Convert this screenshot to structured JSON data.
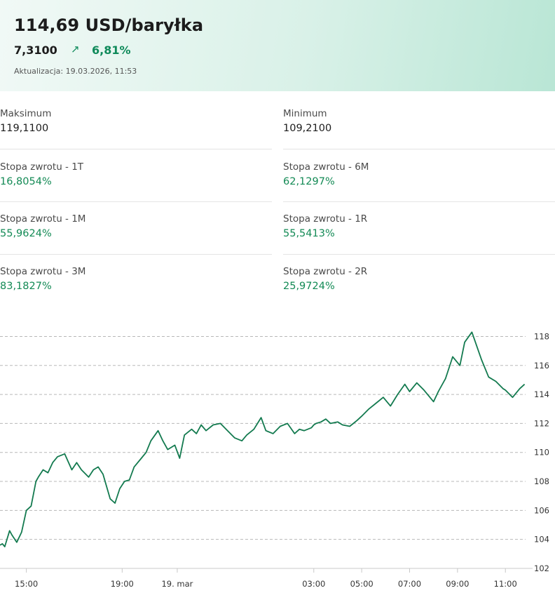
{
  "header": {
    "price": "114,69 USD/baryłka",
    "change_abs": "7,3100",
    "change_pct": "6,81%",
    "trend_icon": "arrow-up-right-icon",
    "updated": "Aktualizacja: 19.03.2026, 11:53"
  },
  "stats": {
    "max": {
      "label": "Maksimum",
      "value": "119,1100"
    },
    "min": {
      "label": "Minimum",
      "value": "109,2100"
    },
    "r1t": {
      "label": "Stopa zwrotu - 1T",
      "value": "16,8054%"
    },
    "r6m": {
      "label": "Stopa zwrotu - 6M",
      "value": "62,1297%"
    },
    "r1m": {
      "label": "Stopa zwrotu - 1M",
      "value": "55,9624%"
    },
    "r1r": {
      "label": "Stopa zwrotu - 1R",
      "value": "55,5413%"
    },
    "r3m": {
      "label": "Stopa zwrotu - 3M",
      "value": "83,1827%"
    },
    "r2r": {
      "label": "Stopa zwrotu - 2R",
      "value": "25,9724%"
    }
  },
  "colors": {
    "accent": "#0f8a5a",
    "line": "#137a4f",
    "grid": "#b8b8b8"
  },
  "chart_data": {
    "type": "line",
    "title": "",
    "xlabel": "",
    "ylabel": "",
    "ylim": [
      102,
      118.7
    ],
    "yticks": [
      102,
      104,
      106,
      108,
      110,
      112,
      114,
      116,
      118
    ],
    "ytick_labels": [
      "102",
      "104",
      "106",
      "108",
      "110",
      "112",
      "114",
      "116",
      "118"
    ],
    "xlim": [
      13.9,
      35.9
    ],
    "xticks": [
      15,
      19,
      21.3,
      27,
      29,
      31,
      33,
      35
    ],
    "xtick_labels": [
      "15:00",
      "19:00",
      "19. mar",
      "03:00",
      "05:00",
      "07:00",
      "09:00",
      "11:00"
    ],
    "grid": "horizontal dashed",
    "series": [
      {
        "x": [
          13.9,
          14.0,
          14.1,
          14.3,
          14.4,
          14.6,
          14.8,
          15.0,
          15.2,
          15.4,
          15.5,
          15.7,
          15.9,
          16.1,
          16.3,
          16.6,
          16.9,
          17.1,
          17.3,
          17.6,
          17.8,
          18.0,
          18.2,
          18.5,
          18.7,
          18.9,
          19.1,
          19.3,
          19.5,
          19.8,
          20.0,
          20.2,
          20.5,
          20.7,
          20.9,
          21.2,
          21.4,
          21.6,
          21.9,
          22.1,
          22.3,
          22.5,
          22.8,
          23.1,
          23.4,
          23.7,
          24.0,
          24.2,
          24.5,
          24.8,
          25.0,
          25.3,
          25.6,
          25.9,
          26.2,
          26.4,
          26.6,
          26.9,
          27.0,
          27.1,
          27.3,
          27.5,
          27.7,
          28.0,
          28.2,
          28.5,
          28.8,
          29.0,
          29.3,
          29.6,
          29.9,
          30.2,
          30.5,
          30.8,
          31.0,
          31.3,
          31.6,
          32.0,
          32.2,
          32.5,
          32.8,
          33.1,
          33.3,
          33.6,
          34.0,
          34.3,
          34.6,
          34.9,
          35.0,
          35.3,
          35.6,
          35.8
        ],
        "y": [
          103.6,
          103.7,
          103.5,
          104.6,
          104.3,
          103.8,
          104.5,
          106.0,
          106.3,
          108.0,
          108.3,
          108.8,
          108.6,
          109.3,
          109.7,
          109.9,
          108.8,
          109.3,
          108.8,
          108.3,
          108.8,
          109.0,
          108.5,
          106.8,
          106.5,
          107.5,
          108.0,
          108.1,
          109.0,
          109.6,
          110.0,
          110.8,
          111.5,
          110.8,
          110.2,
          110.5,
          109.6,
          111.2,
          111.6,
          111.3,
          111.9,
          111.5,
          111.9,
          112.0,
          111.5,
          111.0,
          110.8,
          111.2,
          111.6,
          112.4,
          111.5,
          111.3,
          111.8,
          112.0,
          111.3,
          111.6,
          111.5,
          111.7,
          111.9,
          112.0,
          112.1,
          112.3,
          112.0,
          112.1,
          111.9,
          111.8,
          112.2,
          112.5,
          113.0,
          113.4,
          113.8,
          113.2,
          114.0,
          114.7,
          114.2,
          114.8,
          114.3,
          113.5,
          114.2,
          115.1,
          116.6,
          116.0,
          117.6,
          118.3,
          116.4,
          115.2,
          114.9,
          114.4,
          114.3,
          113.8,
          114.4,
          114.7
        ],
        "name": ""
      }
    ]
  }
}
